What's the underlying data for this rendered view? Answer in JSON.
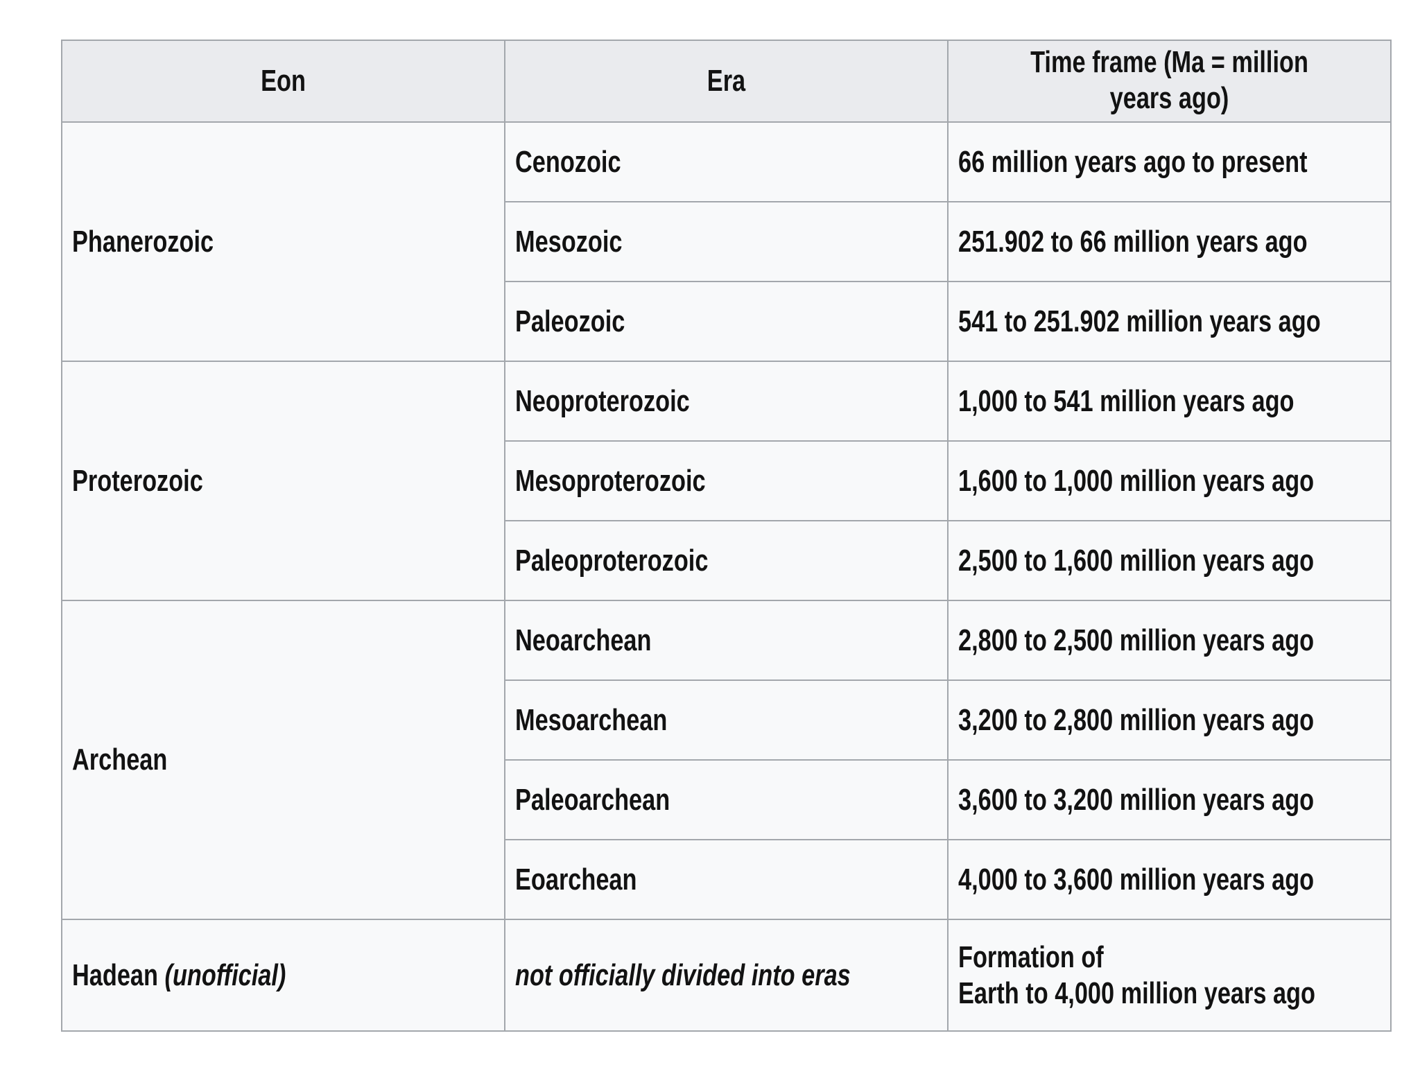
{
  "table": {
    "headers": [
      "Eon",
      "Era",
      "Time frame (Ma = million years ago)"
    ],
    "groups": [
      {
        "eon": "Phanerozoic",
        "rows": [
          {
            "era": "Cenozoic",
            "time": "66 million years ago to present"
          },
          {
            "era": "Mesozoic",
            "time": "251.902 to 66 million years ago"
          },
          {
            "era": "Paleozoic",
            "time": "541 to 251.902 million years ago"
          }
        ]
      },
      {
        "eon": "Proterozoic",
        "rows": [
          {
            "era": "Neoproterozoic",
            "time": "1,000 to 541 million years ago"
          },
          {
            "era": "Mesoproterozoic",
            "time": "1,600 to 1,000 million years ago"
          },
          {
            "era": "Paleoproterozoic",
            "time": "2,500 to 1,600 million years ago"
          }
        ]
      },
      {
        "eon": "Archean",
        "rows": [
          {
            "era": "Neoarchean",
            "time": "2,800 to 2,500 million years ago"
          },
          {
            "era": "Mesoarchean",
            "time": "3,200 to 2,800 million years ago"
          },
          {
            "era": "Paleoarchean",
            "time": "3,600 to 3,200 million years ago"
          },
          {
            "era": "Eoarchean",
            "time": "4,000 to 3,600 million years ago"
          }
        ]
      }
    ],
    "hadean": {
      "eon": "Hadean",
      "eon_note": "(unofficial)",
      "era_note": "not officially divided into eras",
      "time_line1": "Formation of",
      "time_line2": "Earth to 4,000 million years ago"
    }
  },
  "colors": {
    "header_bg": "#eaebee",
    "cell_bg": "#f8f9fa",
    "border": "#a3a7ac",
    "text": "#121212"
  }
}
